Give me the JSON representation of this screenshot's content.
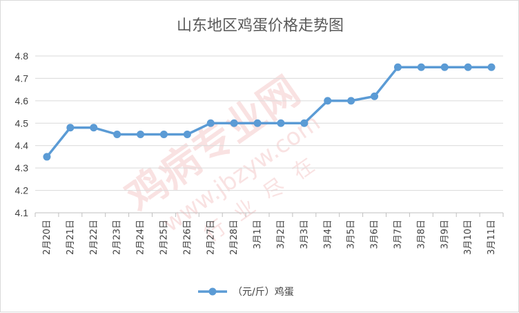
{
  "chart_data": {
    "type": "line",
    "title": "山东地区鸡蛋价格走势图",
    "categories": [
      "2月20日",
      "2月21日",
      "2月22日",
      "2月23日",
      "2月24日",
      "2月25日",
      "2月26日",
      "2月27日",
      "2月28日",
      "3月1日",
      "3月2日",
      "3月3日",
      "3月4日",
      "3月5日",
      "3月6日",
      "3月7日",
      "3月8日",
      "3月9日",
      "3月10日",
      "3月11日"
    ],
    "series": [
      {
        "name": "（元/斤）鸡蛋",
        "values": [
          4.35,
          4.48,
          4.48,
          4.45,
          4.45,
          4.45,
          4.45,
          4.5,
          4.5,
          4.5,
          4.5,
          4.5,
          4.6,
          4.6,
          4.62,
          4.75,
          4.75,
          4.75,
          4.75,
          4.75
        ]
      }
    ],
    "ylim": [
      4.1,
      4.8
    ],
    "yticks": [
      "4.1",
      "4.2",
      "4.3",
      "4.4",
      "4.5",
      "4.6",
      "4.7",
      "4.8"
    ],
    "grid": true,
    "legend_position": "bottom",
    "colors": {
      "line": "#5b9bd5",
      "grid": "#d9d9d9",
      "axis": "#bfbfbf"
    }
  },
  "watermark": {
    "main": "鸡病专业网",
    "url": "www.jbzyw.com",
    "tagline": "行业尽在"
  }
}
